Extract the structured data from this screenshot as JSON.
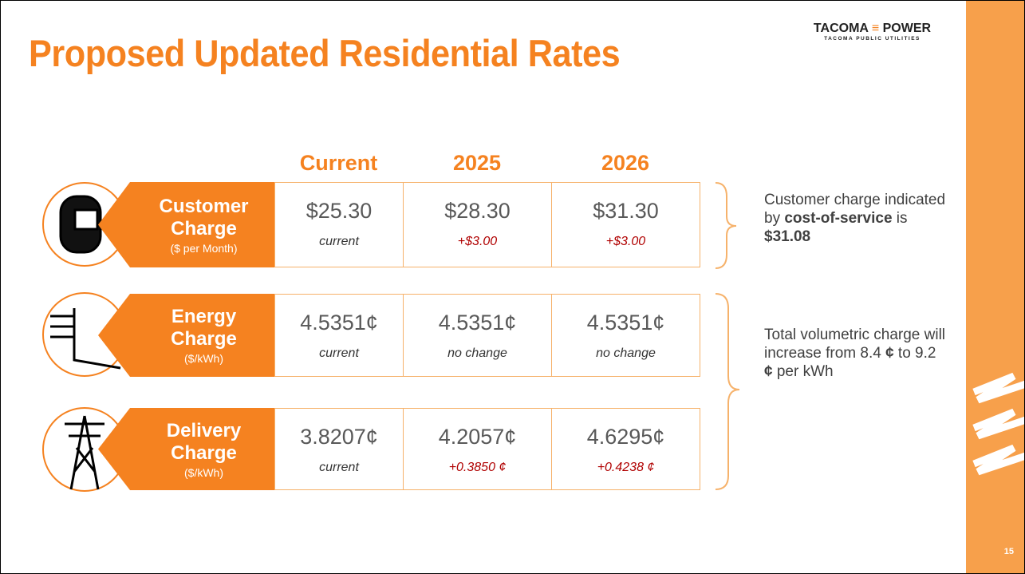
{
  "header": {
    "title": "Proposed Updated Residential Rates",
    "logo": {
      "left": "TACOMA",
      "right": "POWER",
      "sub": "TACOMA PUBLIC UTILITIES"
    }
  },
  "table": {
    "columns": [
      "Current",
      "2025",
      "2026"
    ],
    "rows": [
      {
        "name": "Customer Charge",
        "unit": "($ per Month)",
        "cells": [
          {
            "value": "$25.30",
            "note": "current"
          },
          {
            "value": "$28.30",
            "note": "+$3.00"
          },
          {
            "value": "$31.30",
            "note": "+$3.00"
          }
        ]
      },
      {
        "name": "Energy Charge",
        "unit": "($/kWh)",
        "cells": [
          {
            "value": "4.5351¢",
            "note": "current"
          },
          {
            "value": "4.5351¢",
            "note": "no change"
          },
          {
            "value": "4.5351¢",
            "note": "no change"
          }
        ]
      },
      {
        "name": "Delivery Charge",
        "unit": "($/kWh)",
        "cells": [
          {
            "value": "3.8207¢",
            "note": "current"
          },
          {
            "value": "4.2057¢",
            "note": "+0.3850 ¢"
          },
          {
            "value": "4.6295¢",
            "note": "+0.4238 ¢"
          }
        ]
      }
    ]
  },
  "notes": [
    {
      "segments": [
        "Customer charge indicated by ",
        "cost-of-service",
        " is ",
        "$31.08"
      ]
    },
    {
      "segments": [
        "Total volumetric charge will increase from 8.4 ",
        "¢",
        " to 9.2 ",
        "¢",
        " per kWh"
      ]
    }
  ],
  "page_number": "15"
}
